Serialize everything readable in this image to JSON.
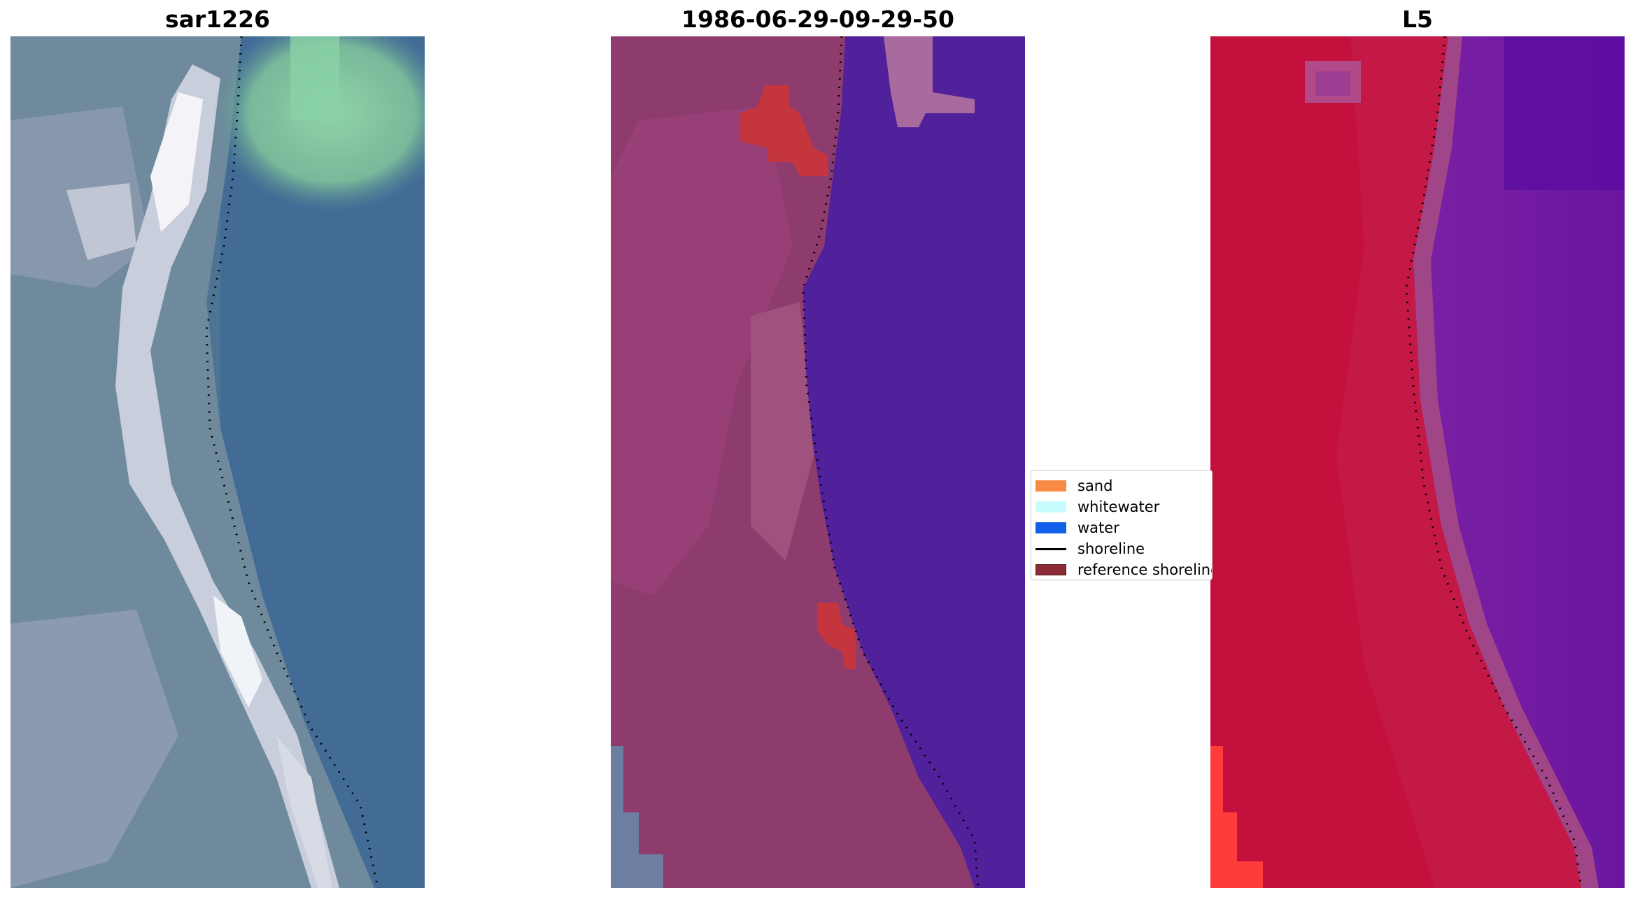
{
  "panels": [
    {
      "id": "p1",
      "title": "sar1226"
    },
    {
      "id": "p2",
      "title": "1986-06-29-09-29-50"
    },
    {
      "id": "p3",
      "title": "L5"
    }
  ],
  "legend": {
    "items": [
      {
        "label": "sand",
        "kind": "patch",
        "color": "#f88a43"
      },
      {
        "label": "whitewater",
        "kind": "patch",
        "color": "#c9fcfd"
      },
      {
        "label": "water",
        "kind": "patch",
        "color": "#1260ea"
      },
      {
        "label": "shoreline",
        "kind": "line",
        "color": "#000000"
      },
      {
        "label": "reference shoreline",
        "kind": "patch",
        "color": "#8b2b36"
      }
    ]
  },
  "colors": {
    "panel1_water": "#456e95",
    "panel1_vegetation": "#86cfa3",
    "panel1_sand": "#e8eaf0",
    "panel2_land": "#8e3b6e",
    "panel2_water": "#51209b",
    "panel2_bright": "#a96aa0",
    "panel2_overlay": "#c5353d",
    "panel3_land": "#c41847",
    "panel3_sea": "#7a20a3",
    "panel3_highlight": "#ff3c3c"
  }
}
